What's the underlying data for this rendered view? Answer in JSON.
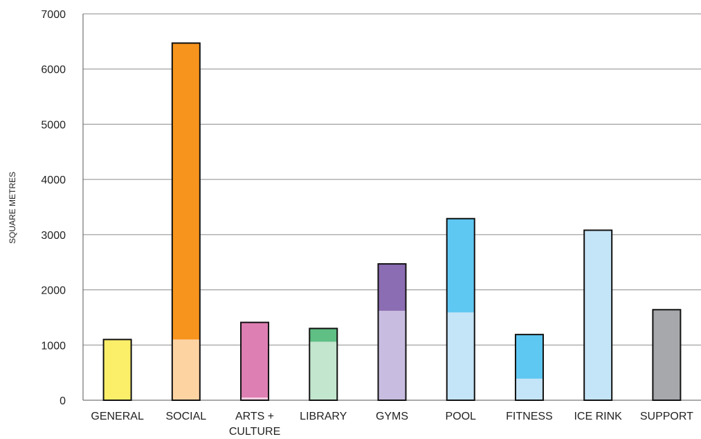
{
  "chart_data": {
    "type": "bar",
    "stacked": true,
    "categories": [
      "GENERAL",
      "SOCIAL",
      "ARTS + CULTURE",
      "LIBRARY",
      "GYMS",
      "POOL",
      "FITNESS",
      "ICE RINK",
      "SUPPORT"
    ],
    "category_lines": [
      [
        "GENERAL"
      ],
      [
        "SOCIAL"
      ],
      [
        "ARTS +",
        "CULTURE"
      ],
      [
        "LIBRARY"
      ],
      [
        "GYMS"
      ],
      [
        "POOL"
      ],
      [
        "FITNESS"
      ],
      [
        "ICE RINK"
      ],
      [
        "SUPPORT"
      ]
    ],
    "bars": [
      {
        "category": "GENERAL",
        "segments": [
          {
            "value": 1100,
            "color": "#fbef6a"
          }
        ]
      },
      {
        "category": "SOCIAL",
        "segments": [
          {
            "value": 1100,
            "color": "#fdd3a2"
          },
          {
            "value": 5370,
            "color": "#f7941d"
          }
        ]
      },
      {
        "category": "ARTS + CULTURE",
        "segments": [
          {
            "value": 50,
            "color": "#f5cfe2"
          },
          {
            "value": 1360,
            "color": "#de7fb3"
          }
        ]
      },
      {
        "category": "LIBRARY",
        "segments": [
          {
            "value": 1060,
            "color": "#c3e6ce"
          },
          {
            "value": 240,
            "color": "#5fbf84"
          }
        ]
      },
      {
        "category": "GYMS",
        "segments": [
          {
            "value": 1620,
            "color": "#c8bde0"
          },
          {
            "value": 850,
            "color": "#8b6db3"
          }
        ]
      },
      {
        "category": "POOL",
        "segments": [
          {
            "value": 1590,
            "color": "#c4e4f7"
          },
          {
            "value": 1700,
            "color": "#5fc8f2"
          }
        ]
      },
      {
        "category": "FITNESS",
        "segments": [
          {
            "value": 390,
            "color": "#c4e4f7"
          },
          {
            "value": 800,
            "color": "#5fc8f2"
          }
        ]
      },
      {
        "category": "ICE RINK",
        "segments": [
          {
            "value": 3080,
            "color": "#c4e4f7"
          }
        ]
      },
      {
        "category": "SUPPORT",
        "segments": [
          {
            "value": 1640,
            "color": "#a6a8ab"
          }
        ]
      }
    ],
    "title": "",
    "xlabel": "",
    "ylabel": "SQUARE METRES",
    "ylim": [
      0,
      7000
    ],
    "yticks": [
      0,
      1000,
      2000,
      3000,
      4000,
      5000,
      6000,
      7000
    ],
    "grid": true,
    "legend": "none"
  }
}
